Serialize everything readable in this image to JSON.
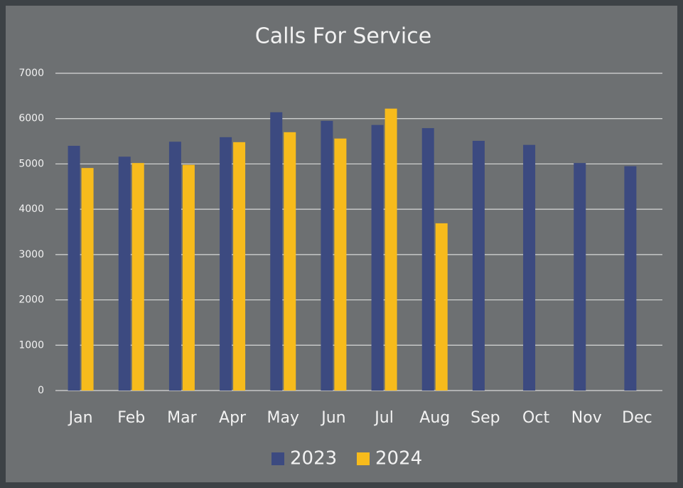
{
  "chart_data": {
    "type": "bar",
    "title": "Calls For Service",
    "categories": [
      "Jan",
      "Feb",
      "Mar",
      "Apr",
      "May",
      "Jun",
      "Jul",
      "Aug",
      "Sep",
      "Oct",
      "Nov",
      "Dec"
    ],
    "series": [
      {
        "name": "2023",
        "color": "#3c4a80",
        "values": [
          5400,
          5160,
          5490,
          5590,
          6140,
          5950,
          5860,
          5790,
          5510,
          5420,
          5020,
          4950
        ]
      },
      {
        "name": "2024",
        "color": "#f7bb1c",
        "values": [
          4910,
          5020,
          4980,
          5480,
          5700,
          5560,
          6220,
          3690,
          null,
          null,
          null,
          null
        ]
      }
    ],
    "ylim": [
      0,
      7000
    ],
    "yticks": [
      0,
      1000,
      2000,
      3000,
      4000,
      5000,
      6000,
      7000
    ],
    "grid": true,
    "legend": "bottom"
  }
}
